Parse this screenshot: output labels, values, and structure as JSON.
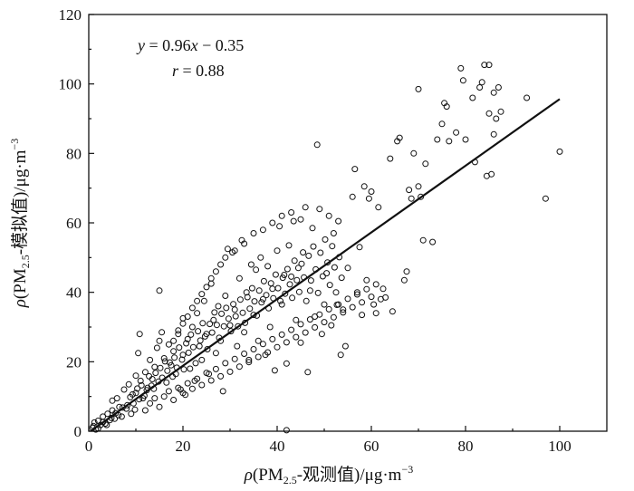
{
  "chart_data": {
    "type": "scatter",
    "xlim": [
      0,
      110
    ],
    "ylim": [
      0,
      120
    ],
    "x_ticks": [
      "0",
      "20",
      "40",
      "60",
      "80",
      "100"
    ],
    "y_ticks": [
      "0",
      "20",
      "40",
      "60",
      "80",
      "100",
      "120"
    ],
    "xlabel": {
      "rho": "ρ",
      "pre": "(PM",
      "sub": "2.5",
      "post": "-观测值)/μg·m",
      "sup": "−3"
    },
    "ylabel": {
      "rho": "ρ",
      "pre": "(PM",
      "sub": "2.5",
      "post": "-模拟值)/μg·m",
      "sup": "−3"
    },
    "equation": {
      "y": "y",
      "mid": " = 0.96",
      "x": "x",
      "tail": " − 0.35"
    },
    "r_text": {
      "r": "r",
      "tail": " = 0.88"
    },
    "fit_line": {
      "slope": 0.96,
      "intercept": -0.35,
      "x_range": [
        0.4,
        100
      ]
    },
    "grid": false,
    "points": [
      [
        0.8,
        1.0
      ],
      [
        1.2,
        2.5
      ],
      [
        1.5,
        0.5
      ],
      [
        2.0,
        3.0
      ],
      [
        2.5,
        1.8
      ],
      [
        3.0,
        4.2
      ],
      [
        3.5,
        2.2
      ],
      [
        4.0,
        5.0
      ],
      [
        4.5,
        3.2
      ],
      [
        5.0,
        6.0
      ],
      [
        5.0,
        8.8
      ],
      [
        5.5,
        3.6
      ],
      [
        6.0,
        9.5
      ],
      [
        6.5,
        7.0
      ],
      [
        7.0,
        4.2
      ],
      [
        7.5,
        12.0
      ],
      [
        8.0,
        6.5
      ],
      [
        8.5,
        13.5
      ],
      [
        9.0,
        5.0
      ],
      [
        9.5,
        8.0
      ],
      [
        10.0,
        16.0
      ],
      [
        10.0,
        11.0
      ],
      [
        10.5,
        22.5
      ],
      [
        10.8,
        28.0
      ],
      [
        11.0,
        14.5
      ],
      [
        11.5,
        9.5
      ],
      [
        12.0,
        17.0
      ],
      [
        12.5,
        12.5
      ],
      [
        13.0,
        20.5
      ],
      [
        13.5,
        15.0
      ],
      [
        14.0,
        18.5
      ],
      [
        14.5,
        24.0
      ],
      [
        15.0,
        40.5
      ],
      [
        15.0,
        26.0
      ],
      [
        15.5,
        28.5
      ],
      [
        16.0,
        21.0
      ],
      [
        16.5,
        14.0
      ],
      [
        17.0,
        25.0
      ],
      [
        17.5,
        19.0
      ],
      [
        18.0,
        23.0
      ],
      [
        18.5,
        16.5
      ],
      [
        19.0,
        28.0
      ],
      [
        19.5,
        12.0
      ],
      [
        20.0,
        32.5
      ],
      [
        20.0,
        22.0
      ],
      [
        20.5,
        10.5
      ],
      [
        21.0,
        26.5
      ],
      [
        21.5,
        18.0
      ],
      [
        22.0,
        30.0
      ],
      [
        22.5,
        14.5
      ],
      [
        23.0,
        34.0
      ],
      [
        23.5,
        24.5
      ],
      [
        24.0,
        20.5
      ],
      [
        24.5,
        37.5
      ],
      [
        25.0,
        28.0
      ],
      [
        25.5,
        16.5
      ],
      [
        26.0,
        42.5
      ],
      [
        26.5,
        32.0
      ],
      [
        27.0,
        22.5
      ],
      [
        27.5,
        36.0
      ],
      [
        28.0,
        26.0
      ],
      [
        28.5,
        11.5
      ],
      [
        29.0,
        39.0
      ],
      [
        29.5,
        52.5
      ],
      [
        30.0,
        30.5
      ],
      [
        30.5,
        51.5
      ],
      [
        31.0,
        35.0
      ],
      [
        31.5,
        24.5
      ],
      [
        32.0,
        44.0
      ],
      [
        32.5,
        55.0
      ],
      [
        33.0,
        28.5
      ],
      [
        33.5,
        40.0
      ],
      [
        34.0,
        20.5
      ],
      [
        34.5,
        48.0
      ],
      [
        35.0,
        33.5
      ],
      [
        35.5,
        46.5
      ],
      [
        36.0,
        26.0
      ],
      [
        36.5,
        50.0
      ],
      [
        37.0,
        38.0
      ],
      [
        37.5,
        22.0
      ],
      [
        38.0,
        47.5
      ],
      [
        38.5,
        30.0
      ],
      [
        39.0,
        41.0
      ],
      [
        39.5,
        17.5
      ],
      [
        40.0,
        52.0
      ],
      [
        40.5,
        59.0
      ],
      [
        41.0,
        36.5
      ],
      [
        41.5,
        45.0
      ],
      [
        42.0,
        19.5
      ],
      [
        42.0,
        0.3
      ],
      [
        42.5,
        53.5
      ],
      [
        43.0,
        44.5
      ],
      [
        43.5,
        60.5
      ],
      [
        44.0,
        32.0
      ],
      [
        44.5,
        47.0
      ],
      [
        45.0,
        25.5
      ],
      [
        45.5,
        51.5
      ],
      [
        46.0,
        64.5
      ],
      [
        46.5,
        17.0
      ],
      [
        47.0,
        40.5
      ],
      [
        47.5,
        58.5
      ],
      [
        48.0,
        33.0
      ],
      [
        48.5,
        82.5
      ],
      [
        49.0,
        64.0
      ],
      [
        49.5,
        28.0
      ],
      [
        50.0,
        36.5
      ],
      [
        50.5,
        45.5
      ],
      [
        51.0,
        62.0
      ],
      [
        51.5,
        30.5
      ],
      [
        52.0,
        57.0
      ],
      [
        52.5,
        40.0
      ],
      [
        53.0,
        60.5
      ],
      [
        53.5,
        22.0
      ],
      [
        54.0,
        35.0
      ],
      [
        54.5,
        24.5
      ],
      [
        55.0,
        47.0
      ],
      [
        56.0,
        67.5
      ],
      [
        56.5,
        75.5
      ],
      [
        57.0,
        40.0
      ],
      [
        57.5,
        53.0
      ],
      [
        58.0,
        33.5
      ],
      [
        58.5,
        70.5
      ],
      [
        59.0,
        43.5
      ],
      [
        59.5,
        67.0
      ],
      [
        60.0,
        69.0
      ],
      [
        60.5,
        36.5
      ],
      [
        61.0,
        34.0
      ],
      [
        61.5,
        64.5
      ],
      [
        62.0,
        38.0
      ],
      [
        62.5,
        41.0
      ],
      [
        63.0,
        38.5
      ],
      [
        64.0,
        78.5
      ],
      [
        64.5,
        34.5
      ],
      [
        65.5,
        83.5
      ],
      [
        66.0,
        84.5
      ],
      [
        67.0,
        43.5
      ],
      [
        67.5,
        46.0
      ],
      [
        68.0,
        69.5
      ],
      [
        68.5,
        67.0
      ],
      [
        69.0,
        80.0
      ],
      [
        70.0,
        98.5
      ],
      [
        70.0,
        70.5
      ],
      [
        70.5,
        67.5
      ],
      [
        71.0,
        55.0
      ],
      [
        71.5,
        77.0
      ],
      [
        73.0,
        54.5
      ],
      [
        74.0,
        84.0
      ],
      [
        75.0,
        88.5
      ],
      [
        75.5,
        94.5
      ],
      [
        76.0,
        93.5
      ],
      [
        76.5,
        83.5
      ],
      [
        78.0,
        86.0
      ],
      [
        79.0,
        104.5
      ],
      [
        79.5,
        101.0
      ],
      [
        80.0,
        84.0
      ],
      [
        81.5,
        96.0
      ],
      [
        82.0,
        77.5
      ],
      [
        83.0,
        99.0
      ],
      [
        83.5,
        100.5
      ],
      [
        84.0,
        105.5
      ],
      [
        84.5,
        73.5
      ],
      [
        85.0,
        105.5
      ],
      [
        85.0,
        91.5
      ],
      [
        85.5,
        74.0
      ],
      [
        86.0,
        97.5
      ],
      [
        86.0,
        85.5
      ],
      [
        86.5,
        90.0
      ],
      [
        87.0,
        99.0
      ],
      [
        87.5,
        92.0
      ],
      [
        93.0,
        96.0
      ],
      [
        97.0,
        67.0
      ],
      [
        100.0,
        80.5
      ],
      [
        1,
        1.5
      ],
      [
        2,
        0.8
      ],
      [
        3,
        2.6
      ],
      [
        3.8,
        1.8
      ],
      [
        4.8,
        3.8
      ],
      [
        5.7,
        5.2
      ],
      [
        6.3,
        4.6
      ],
      [
        7.2,
        6.8
      ],
      [
        8.2,
        7.5
      ],
      [
        8.8,
        9.8
      ],
      [
        9.3,
        10.6
      ],
      [
        9.8,
        6.2
      ],
      [
        10.3,
        12.3
      ],
      [
        10.7,
        9.2
      ],
      [
        11.2,
        13.2
      ],
      [
        11.8,
        10.2
      ],
      [
        12.3,
        11.8
      ],
      [
        12.8,
        15.8
      ],
      [
        13.3,
        13.1
      ],
      [
        13.8,
        12.2
      ],
      [
        14.2,
        16.8
      ],
      [
        14.8,
        14.3
      ],
      [
        15.2,
        18.2
      ],
      [
        15.6,
        15.4
      ],
      [
        16.2,
        20.1
      ],
      [
        16.7,
        17.4
      ],
      [
        17.2,
        19.8
      ],
      [
        17.8,
        15.7
      ],
      [
        18.2,
        21.2
      ],
      [
        18.7,
        18.3
      ],
      [
        19.2,
        24.1
      ],
      [
        19.8,
        20.6
      ],
      [
        20.2,
        17.8
      ],
      [
        20.7,
        25.3
      ],
      [
        21.2,
        22.6
      ],
      [
        21.7,
        27.8
      ],
      [
        22.2,
        24.2
      ],
      [
        22.7,
        19.6
      ],
      [
        23.2,
        28.8
      ],
      [
        23.7,
        26.1
      ],
      [
        24.2,
        31.1
      ],
      [
        24.7,
        27.3
      ],
      [
        25.2,
        23.6
      ],
      [
        25.7,
        30.9
      ],
      [
        26.2,
        28.4
      ],
      [
        26.7,
        34.2
      ],
      [
        27.2,
        30.6
      ],
      [
        27.7,
        26.9
      ],
      [
        28.2,
        33.8
      ],
      [
        28.7,
        30.2
      ],
      [
        29.2,
        35.5
      ],
      [
        29.7,
        32.4
      ],
      [
        30.2,
        28.8
      ],
      [
        30.7,
        36.6
      ],
      [
        31.2,
        33.1
      ],
      [
        31.7,
        30.2
      ],
      [
        32.2,
        37.9
      ],
      [
        32.7,
        34.1
      ],
      [
        33.2,
        31.2
      ],
      [
        33.7,
        38.6
      ],
      [
        34.2,
        35.3
      ],
      [
        34.7,
        41.2
      ],
      [
        35.2,
        37.4
      ],
      [
        35.7,
        33.3
      ],
      [
        36.2,
        40.5
      ],
      [
        36.7,
        37.1
      ],
      [
        37.2,
        43.2
      ],
      [
        37.7,
        39.2
      ],
      [
        38.2,
        35.4
      ],
      [
        38.7,
        42.6
      ],
      [
        39.2,
        38.3
      ],
      [
        39.7,
        45.1
      ],
      [
        40.2,
        41.2
      ],
      [
        40.7,
        37.5
      ],
      [
        41.2,
        44.2
      ],
      [
        41.7,
        39.6
      ],
      [
        42.2,
        46.7
      ],
      [
        42.7,
        42.3
      ],
      [
        43.2,
        38.4
      ],
      [
        43.7,
        49.1
      ],
      [
        44.2,
        43.5
      ],
      [
        44.7,
        40.1
      ],
      [
        45.2,
        48.2
      ],
      [
        45.7,
        44.3
      ],
      [
        46.2,
        37.5
      ],
      [
        46.7,
        50.5
      ],
      [
        47.2,
        43.4
      ],
      [
        47.7,
        53.2
      ],
      [
        48.2,
        46.6
      ],
      [
        48.7,
        39.8
      ],
      [
        49.2,
        51.4
      ],
      [
        49.7,
        44.6
      ],
      [
        50.2,
        55.2
      ],
      [
        50.7,
        48.6
      ],
      [
        51.2,
        42.1
      ],
      [
        51.7,
        53.3
      ],
      [
        52.2,
        47.2
      ],
      [
        52.7,
        36.4
      ],
      [
        53.2,
        50.1
      ],
      [
        53.7,
        44.2
      ],
      [
        12,
        6
      ],
      [
        13,
        8
      ],
      [
        14,
        9.5
      ],
      [
        15,
        7
      ],
      [
        16,
        10
      ],
      [
        17,
        11.5
      ],
      [
        18,
        9
      ],
      [
        19,
        12.5
      ],
      [
        20,
        11
      ],
      [
        21,
        13.8
      ],
      [
        22,
        12.2
      ],
      [
        23,
        15.1
      ],
      [
        24,
        13.3
      ],
      [
        25,
        16.8
      ],
      [
        26,
        14.6
      ],
      [
        27,
        17.9
      ],
      [
        28,
        15.8
      ],
      [
        29,
        19.6
      ],
      [
        30,
        17.1
      ],
      [
        31,
        20.8
      ],
      [
        32,
        18.6
      ],
      [
        33,
        22.3
      ],
      [
        34,
        19.9
      ],
      [
        35,
        23.6
      ],
      [
        36,
        21.4
      ],
      [
        37,
        25.1
      ],
      [
        38,
        22.7
      ],
      [
        39,
        26.5
      ],
      [
        40,
        24.2
      ],
      [
        41,
        27.8
      ],
      [
        42,
        25.6
      ],
      [
        43,
        29.2
      ],
      [
        44,
        27.1
      ],
      [
        45,
        30.8
      ],
      [
        46,
        28.4
      ],
      [
        47,
        32.2
      ],
      [
        48,
        29.9
      ],
      [
        49,
        33.6
      ],
      [
        50,
        31.4
      ],
      [
        51,
        35.1
      ],
      [
        52,
        32.8
      ],
      [
        53,
        36.5
      ],
      [
        54,
        34.2
      ],
      [
        55,
        38.1
      ],
      [
        56,
        35.7
      ],
      [
        57,
        39.4
      ],
      [
        58,
        37.1
      ],
      [
        59,
        40.9
      ],
      [
        60,
        38.7
      ],
      [
        61,
        42.3
      ],
      [
        18,
        26
      ],
      [
        19,
        29
      ],
      [
        20,
        31
      ],
      [
        21,
        33
      ],
      [
        22,
        35.5
      ],
      [
        23,
        37.5
      ],
      [
        24,
        39.5
      ],
      [
        25,
        41.5
      ],
      [
        26,
        44
      ],
      [
        27,
        46
      ],
      [
        28,
        48
      ],
      [
        29,
        50
      ],
      [
        31,
        52
      ],
      [
        33,
        54
      ],
      [
        35,
        57
      ],
      [
        37,
        58
      ],
      [
        39,
        60
      ],
      [
        41,
        62
      ],
      [
        43,
        63
      ],
      [
        45,
        61
      ]
    ]
  }
}
